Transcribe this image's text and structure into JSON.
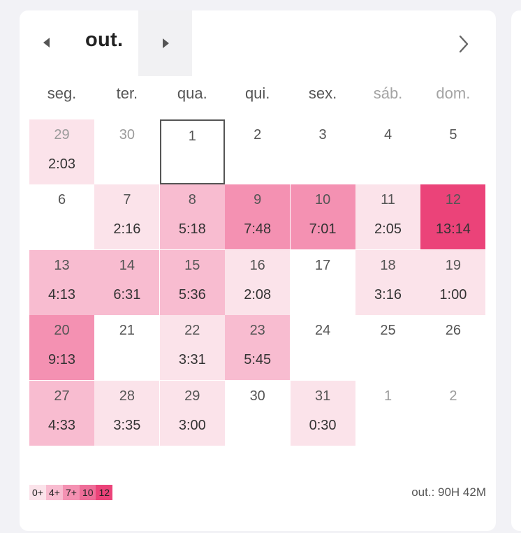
{
  "header": {
    "month": "out."
  },
  "weekdays": [
    {
      "label": "seg.",
      "weekend": false
    },
    {
      "label": "ter.",
      "weekend": false
    },
    {
      "label": "qua.",
      "weekend": false
    },
    {
      "label": "qui.",
      "weekend": false
    },
    {
      "label": "sex.",
      "weekend": false
    },
    {
      "label": "sáb.",
      "weekend": true
    },
    {
      "label": "dom.",
      "weekend": true
    }
  ],
  "days": [
    {
      "day": "29",
      "time": "2:03",
      "level": 1,
      "other": true
    },
    {
      "day": "30",
      "time": "",
      "level": 0,
      "other": true
    },
    {
      "day": "1",
      "time": "",
      "level": 0,
      "today": true
    },
    {
      "day": "2",
      "time": "",
      "level": 0
    },
    {
      "day": "3",
      "time": "",
      "level": 0
    },
    {
      "day": "4",
      "time": "",
      "level": 0
    },
    {
      "day": "5",
      "time": "",
      "level": 0
    },
    {
      "day": "6",
      "time": "",
      "level": 0
    },
    {
      "day": "7",
      "time": "2:16",
      "level": 1
    },
    {
      "day": "8",
      "time": "5:18",
      "level": 2
    },
    {
      "day": "9",
      "time": "7:48",
      "level": 3
    },
    {
      "day": "10",
      "time": "7:01",
      "level": 3
    },
    {
      "day": "11",
      "time": "2:05",
      "level": 1
    },
    {
      "day": "12",
      "time": "13:14",
      "level": 5
    },
    {
      "day": "13",
      "time": "4:13",
      "level": 2
    },
    {
      "day": "14",
      "time": "6:31",
      "level": 2
    },
    {
      "day": "15",
      "time": "5:36",
      "level": 2
    },
    {
      "day": "16",
      "time": "2:08",
      "level": 1
    },
    {
      "day": "17",
      "time": "",
      "level": 0
    },
    {
      "day": "18",
      "time": "3:16",
      "level": 1
    },
    {
      "day": "19",
      "time": "1:00",
      "level": 1
    },
    {
      "day": "20",
      "time": "9:13",
      "level": 3
    },
    {
      "day": "21",
      "time": "",
      "level": 0
    },
    {
      "day": "22",
      "time": "3:31",
      "level": 1
    },
    {
      "day": "23",
      "time": "5:45",
      "level": 2
    },
    {
      "day": "24",
      "time": "",
      "level": 0
    },
    {
      "day": "25",
      "time": "",
      "level": 0
    },
    {
      "day": "26",
      "time": "",
      "level": 0
    },
    {
      "day": "27",
      "time": "4:33",
      "level": 2
    },
    {
      "day": "28",
      "time": "3:35",
      "level": 1
    },
    {
      "day": "29",
      "time": "3:00",
      "level": 1
    },
    {
      "day": "30",
      "time": "",
      "level": 0
    },
    {
      "day": "31",
      "time": "0:30",
      "level": 1
    },
    {
      "day": "1",
      "time": "",
      "level": 0,
      "other": true
    },
    {
      "day": "2",
      "time": "",
      "level": 0,
      "other": true
    }
  ],
  "level_colors": [
    "#ffffff",
    "#fbe3ea",
    "#f8bcd0",
    "#f491b2",
    "#ee6d98",
    "#eb4379"
  ],
  "legend": [
    {
      "label": "0+",
      "color": "#fbe3ea"
    },
    {
      "label": "4+",
      "color": "#f8bcd0"
    },
    {
      "label": "7+",
      "color": "#f491b2"
    },
    {
      "label": "10",
      "color": "#ee6d98"
    },
    {
      "label": "12",
      "color": "#eb4379"
    }
  ],
  "footer": {
    "total": "out.: 90H 42M"
  },
  "icons": {
    "prev": "triangle-left-icon",
    "next": "triangle-right-icon",
    "forward": "chevron-right-icon"
  }
}
